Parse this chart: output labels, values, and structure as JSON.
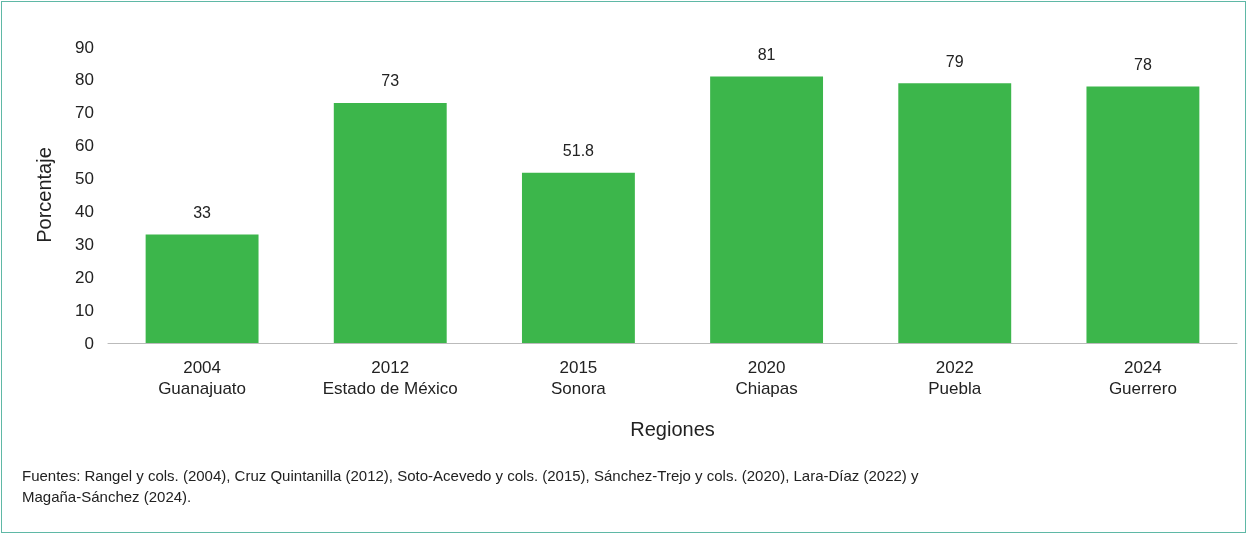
{
  "chart_data": {
    "type": "bar",
    "xlabel": "Regiones",
    "ylabel": "Porcentaje",
    "categories": [
      "2004\nGuanajuato",
      "2012\nEstado de México",
      "2015\nSonora",
      "2020\nChiapas",
      "2022\nPuebla",
      "2024\nGuerrero"
    ],
    "values": [
      33,
      73,
      51.8,
      81,
      79,
      78
    ],
    "color": "#3cb64b",
    "data_labels": true,
    "grid": false,
    "ylim": [
      0,
      90
    ],
    "yticks": [
      0,
      10,
      20,
      30,
      40,
      50,
      60,
      70,
      80,
      90
    ],
    "annotations": [
      "Fuentes: Rangel y cols. (2004), Cruz Quintanilla (2012), Soto-Acevedo y cols. (2015), Sánchez-Trejo y cols. (2020), Lara-Díaz (2022) y Magaña-Sánchez (2024)."
    ]
  }
}
